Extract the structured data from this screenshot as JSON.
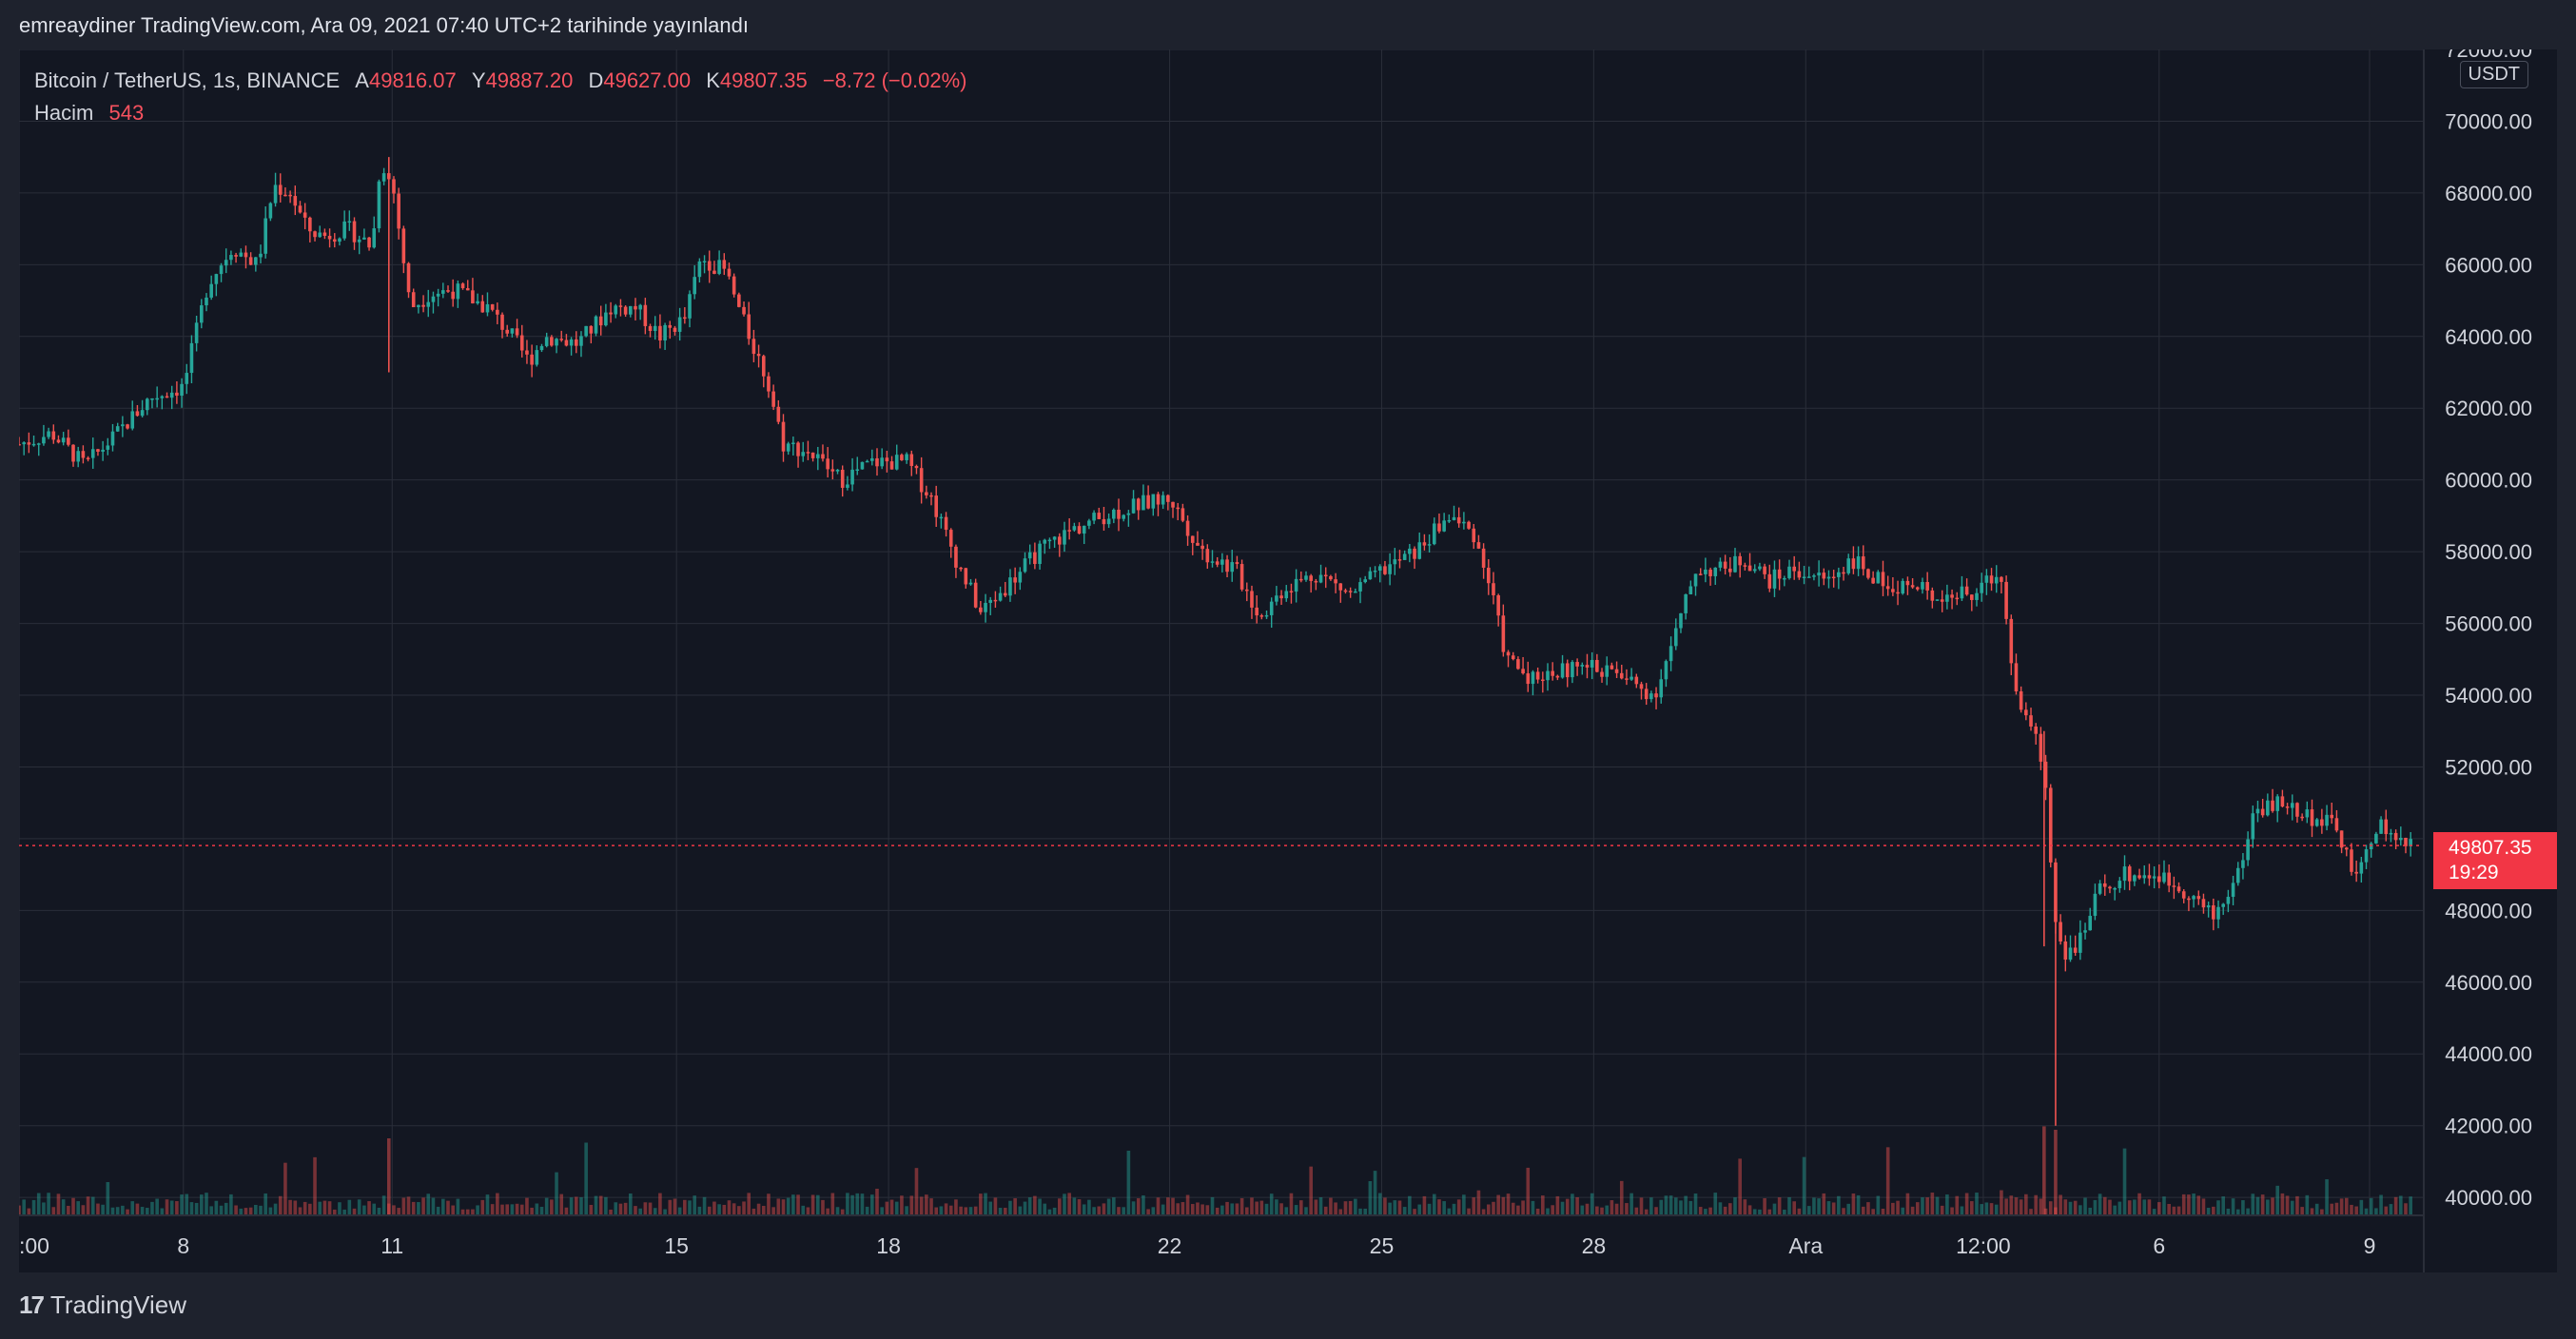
{
  "header": {
    "published_text": "emreaydiner TradingView.com, Ara 09, 2021 07:40 UTC+2 tarihinde yayınlandı"
  },
  "legend": {
    "symbol": "Bitcoin / TetherUS, 1s, BINANCE",
    "open_label": "A",
    "open_value": "49816.07",
    "high_label": "Y",
    "high_value": "49887.20",
    "low_label": "D",
    "low_value": "49627.00",
    "close_label": "K",
    "close_value": "49807.35",
    "change": "−8.72 (−0.02%)",
    "volume_label": "Hacim",
    "volume_value": "543"
  },
  "currency": "USDT",
  "last_price": {
    "price": "49807.35",
    "countdown": "19:29"
  },
  "footer": {
    "logo_mark": "17",
    "brand": "TradingView"
  },
  "colors": {
    "up": "#26a69a",
    "down": "#ef5350",
    "background": "#131722",
    "grid": "#2a2e39",
    "price_tag": "#f23645",
    "text": "#d1d4dc"
  },
  "chart_data": {
    "type": "candlestick",
    "title": "Bitcoin / TetherUS, 1s, BINANCE",
    "ylabel": "USDT",
    "ylim": [
      39500,
      72000
    ],
    "y_ticks": [
      40000,
      42000,
      44000,
      46000,
      48000,
      50000,
      52000,
      54000,
      56000,
      58000,
      60000,
      62000,
      64000,
      66000,
      68000,
      70000,
      72000
    ],
    "y_tick_labels": [
      "40000.00",
      "42000.00",
      "44000.00",
      "46000.00",
      "48000.00",
      "",
      "52000.00",
      "54000.00",
      "56000.00",
      "58000.00",
      "60000.00",
      "62000.00",
      "64000.00",
      "66000.00",
      "68000.00",
      "70000.00",
      "72000.00"
    ],
    "x_ticks": [
      ":00",
      "8",
      "11",
      "15",
      "18",
      "22",
      "25",
      "28",
      "Ara",
      "12:00",
      "6",
      "9"
    ],
    "x_tick_pos": [
      0,
      100,
      227,
      400,
      529,
      700,
      829,
      958,
      1087,
      1195,
      1302,
      1430
    ],
    "x_range": [
      0,
      1463
    ],
    "last_price": 49807.35,
    "grid": true,
    "series": [
      {
        "name": "Bitcoin / TetherUS",
        "points": [
          [
            0,
            61000
          ],
          [
            20,
            61300
          ],
          [
            40,
            60400
          ],
          [
            60,
            61300
          ],
          [
            80,
            62300
          ],
          [
            100,
            62600
          ],
          [
            115,
            65500
          ],
          [
            130,
            66500
          ],
          [
            145,
            66000
          ],
          [
            155,
            68200
          ],
          [
            165,
            68000
          ],
          [
            175,
            67000
          ],
          [
            185,
            66800
          ],
          [
            200,
            67000
          ],
          [
            215,
            66500
          ],
          [
            220,
            69000
          ],
          [
            228,
            68000
          ],
          [
            238,
            64800
          ],
          [
            250,
            65200
          ],
          [
            265,
            65300
          ],
          [
            285,
            64800
          ],
          [
            300,
            64000
          ],
          [
            310,
            63300
          ],
          [
            320,
            64000
          ],
          [
            340,
            63800
          ],
          [
            360,
            64800
          ],
          [
            375,
            64800
          ],
          [
            390,
            64000
          ],
          [
            405,
            64500
          ],
          [
            415,
            66200
          ],
          [
            430,
            65800
          ],
          [
            440,
            64500
          ],
          [
            455,
            62800
          ],
          [
            465,
            61000
          ],
          [
            480,
            60800
          ],
          [
            500,
            60000
          ],
          [
            520,
            60500
          ],
          [
            540,
            60500
          ],
          [
            555,
            59500
          ],
          [
            570,
            57800
          ],
          [
            585,
            56300
          ],
          [
            600,
            57000
          ],
          [
            620,
            58000
          ],
          [
            640,
            58600
          ],
          [
            660,
            59000
          ],
          [
            680,
            59300
          ],
          [
            700,
            59500
          ],
          [
            720,
            58000
          ],
          [
            740,
            57500
          ],
          [
            755,
            56200
          ],
          [
            770,
            57000
          ],
          [
            790,
            57400
          ],
          [
            810,
            56800
          ],
          [
            830,
            57500
          ],
          [
            850,
            58000
          ],
          [
            870,
            59000
          ],
          [
            885,
            58500
          ],
          [
            895,
            57000
          ],
          [
            905,
            55000
          ],
          [
            920,
            54500
          ],
          [
            940,
            54700
          ],
          [
            960,
            54800
          ],
          [
            975,
            54500
          ],
          [
            995,
            54000
          ],
          [
            1010,
            56000
          ],
          [
            1020,
            57500
          ],
          [
            1035,
            57500
          ],
          [
            1050,
            57800
          ],
          [
            1065,
            57200
          ],
          [
            1080,
            57500
          ],
          [
            1100,
            57200
          ],
          [
            1115,
            57800
          ],
          [
            1130,
            57200
          ],
          [
            1150,
            57000
          ],
          [
            1170,
            56800
          ],
          [
            1190,
            56800
          ],
          [
            1205,
            57500
          ],
          [
            1215,
            54000
          ],
          [
            1225,
            53000
          ],
          [
            1232,
            52000
          ],
          [
            1238,
            48000
          ],
          [
            1245,
            46800
          ],
          [
            1255,
            47200
          ],
          [
            1265,
            48500
          ],
          [
            1280,
            49000
          ],
          [
            1300,
            49000
          ],
          [
            1320,
            48500
          ],
          [
            1335,
            47800
          ],
          [
            1350,
            49000
          ],
          [
            1360,
            50800
          ],
          [
            1375,
            51000
          ],
          [
            1390,
            50700
          ],
          [
            1410,
            50300
          ],
          [
            1422,
            48800
          ],
          [
            1435,
            50500
          ],
          [
            1450,
            49800
          ],
          [
            1460,
            49800
          ]
        ]
      }
    ]
  }
}
